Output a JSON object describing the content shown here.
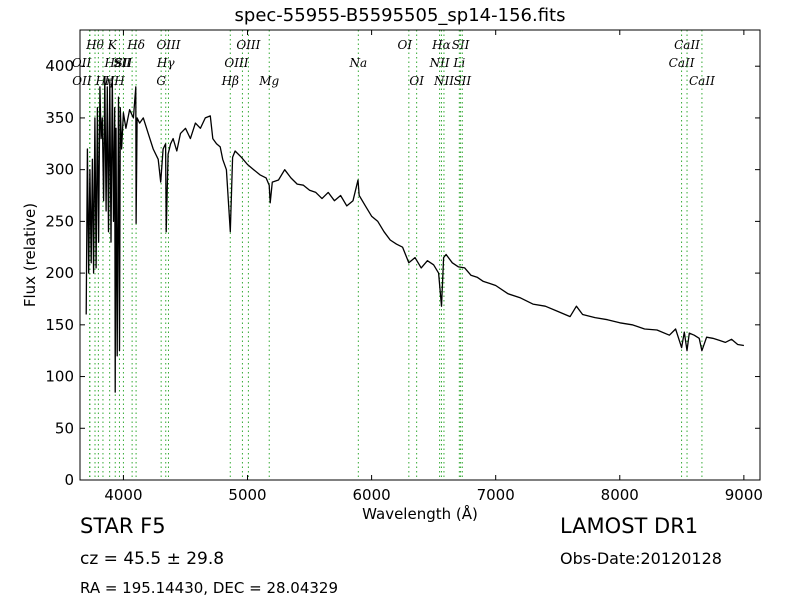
{
  "chart_data": {
    "type": "line",
    "title": "spec-55955-B5595505_sp14-156.fits",
    "xlabel": "Wavelength (Å)",
    "ylabel": "Flux (relative)",
    "xlim": [
      3650,
      9130
    ],
    "ylim": [
      0,
      435
    ],
    "x_ticks": [
      4000,
      5000,
      6000,
      7000,
      8000,
      9000
    ],
    "y_ticks": [
      0,
      50,
      100,
      150,
      200,
      250,
      300,
      350,
      400
    ],
    "grid": false,
    "series": [
      {
        "color": "#000000",
        "x": [
          3700,
          3710,
          3720,
          3730,
          3740,
          3750,
          3760,
          3770,
          3780,
          3790,
          3800,
          3810,
          3820,
          3830,
          3840,
          3850,
          3860,
          3870,
          3880,
          3890,
          3900,
          3910,
          3920,
          3930,
          3934,
          3940,
          3950,
          3960,
          3968,
          3975,
          3985,
          4000,
          4020,
          4050,
          4080,
          4100,
          4102,
          4110,
          4130,
          4160,
          4200,
          4240,
          4280,
          4300,
          4320,
          4340,
          4345,
          4360,
          4380,
          4400,
          4430,
          4460,
          4500,
          4540,
          4580,
          4620,
          4660,
          4700,
          4720,
          4750,
          4780,
          4800,
          4830,
          4861,
          4880,
          4900,
          4950,
          5000,
          5050,
          5100,
          5150,
          5175,
          5183,
          5200,
          5250,
          5300,
          5350,
          5400,
          5450,
          5500,
          5550,
          5600,
          5650,
          5700,
          5750,
          5800,
          5850,
          5890,
          5900,
          5950,
          6000,
          6050,
          6100,
          6150,
          6200,
          6250,
          6300,
          6350,
          6400,
          6450,
          6500,
          6540,
          6563,
          6580,
          6600,
          6650,
          6700,
          6750,
          6800,
          6850,
          6900,
          6950,
          7000,
          7100,
          7200,
          7300,
          7400,
          7500,
          7600,
          7650,
          7700,
          7800,
          7900,
          8000,
          8100,
          8200,
          8300,
          8400,
          8450,
          8498,
          8520,
          8542,
          8560,
          8600,
          8640,
          8662,
          8700,
          8750,
          8800,
          8850,
          8900,
          8950,
          9000
        ],
        "y": [
          160,
          320,
          200,
          300,
          210,
          310,
          200,
          350,
          205,
          360,
          230,
          380,
          330,
          350,
          270,
          390,
          260,
          380,
          240,
          385,
          230,
          390,
          250,
          360,
          85,
          340,
          120,
          370,
          125,
          360,
          320,
          355,
          340,
          358,
          350,
          380,
          248,
          350,
          345,
          350,
          335,
          320,
          310,
          288,
          320,
          325,
          240,
          315,
          325,
          330,
          318,
          335,
          340,
          330,
          345,
          340,
          350,
          352,
          330,
          325,
          322,
          310,
          300,
          240,
          312,
          318,
          312,
          305,
          300,
          295,
          292,
          285,
          268,
          288,
          290,
          300,
          292,
          286,
          285,
          280,
          278,
          272,
          278,
          270,
          275,
          265,
          270,
          290,
          275,
          265,
          255,
          250,
          240,
          232,
          228,
          225,
          210,
          215,
          205,
          212,
          208,
          200,
          168,
          215,
          218,
          210,
          206,
          205,
          198,
          196,
          192,
          190,
          188,
          180,
          176,
          170,
          168,
          163,
          158,
          168,
          160,
          157,
          155,
          152,
          150,
          146,
          145,
          140,
          146,
          128,
          143,
          125,
          142,
          140,
          137,
          125,
          138,
          137,
          135,
          133,
          136,
          131,
          130
        ]
      }
    ],
    "line_markers": [
      {
        "x": 3727,
        "label": "OII",
        "row": 2,
        "offset": -8
      },
      {
        "x": 3730,
        "label": "OII",
        "row": 3,
        "offset": -8
      },
      {
        "x": 3771,
        "label": "Hθ",
        "row": 1,
        "offset": 0
      },
      {
        "x": 3798,
        "label": "Hη",
        "row": 3,
        "offset": 6
      },
      {
        "x": 3835,
        "label": "Hε",
        "row": 2,
        "offset": 10
      },
      {
        "x": 3889,
        "label": "H",
        "row": 3,
        "offset": 0
      },
      {
        "x": 3934,
        "label": "K",
        "row": 1,
        "offset": -3
      },
      {
        "x": 3968,
        "label": "H",
        "row": 3,
        "offset": 0
      },
      {
        "x": 4000,
        "label": "SII",
        "row": 2,
        "offset": 0
      },
      {
        "x": 4070,
        "label": "SII",
        "row": 2,
        "offset": -10
      },
      {
        "x": 4102,
        "label": "Hδ",
        "row": 1,
        "offset": 0
      },
      {
        "x": 4304,
        "label": "G",
        "row": 3,
        "offset": 0
      },
      {
        "x": 4341,
        "label": "Hγ",
        "row": 2,
        "offset": 0
      },
      {
        "x": 4363,
        "label": "OIII",
        "row": 1,
        "offset": 0
      },
      {
        "x": 4861,
        "label": "Hβ",
        "row": 3,
        "offset": 0
      },
      {
        "x": 4959,
        "label": "OIII",
        "row": 2,
        "offset": -6
      },
      {
        "x": 5007,
        "label": "OIII",
        "row": 1,
        "offset": 0
      },
      {
        "x": 5175,
        "label": "Mg",
        "row": 3,
        "offset": 0
      },
      {
        "x": 5893,
        "label": "Na",
        "row": 2,
        "offset": 0
      },
      {
        "x": 6300,
        "label": "OI",
        "row": 1,
        "offset": -4
      },
      {
        "x": 6363,
        "label": "OI",
        "row": 3,
        "offset": 0
      },
      {
        "x": 6548,
        "label": "NII",
        "row": 2,
        "offset": 0
      },
      {
        "x": 6563,
        "label": "Hα",
        "row": 1,
        "offset": 0
      },
      {
        "x": 6583,
        "label": "NII",
        "row": 3,
        "offset": 0
      },
      {
        "x": 6707,
        "label": "Li",
        "row": 2,
        "offset": 0
      },
      {
        "x": 6717,
        "label": "SII",
        "row": 1,
        "offset": 0
      },
      {
        "x": 6731,
        "label": "SII",
        "row": 3,
        "offset": 0
      },
      {
        "x": 8498,
        "label": "CaII",
        "row": 2,
        "offset": 0
      },
      {
        "x": 8542,
        "label": "CaII",
        "row": 1,
        "offset": 0
      },
      {
        "x": 8662,
        "label": "CaII",
        "row": 3,
        "offset": 0
      }
    ],
    "marker_color": "#33aa33"
  },
  "info": {
    "object_type": "STAR   F5",
    "cz": "cz = 45.5  ± 29.8",
    "radec": "RA = 195.14430, DEC = 28.04329",
    "survey": "LAMOST DR1",
    "obs_date": "Obs-Date:20120128"
  }
}
